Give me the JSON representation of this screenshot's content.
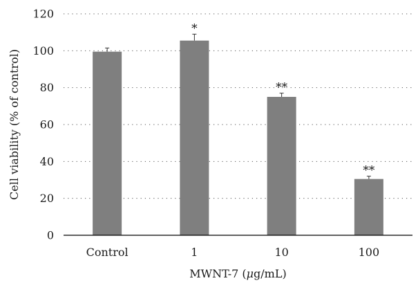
{
  "chart_data": {
    "type": "bar",
    "categories": [
      "Control",
      "1",
      "10",
      "100"
    ],
    "values": [
      99.5,
      105.5,
      75,
      30.5
    ],
    "errors": [
      2,
      3.5,
      2,
      1.5
    ],
    "significance": [
      "",
      "*",
      "**",
      "**"
    ],
    "xlabel_parts": [
      "MWNT-7 (",
      "μ",
      "g/mL)"
    ],
    "ylabel": "Cell viability (% of control)",
    "ylim": [
      0,
      120
    ],
    "yticks": [
      0,
      20,
      40,
      60,
      80,
      100,
      120
    ],
    "grid": true,
    "bar_color": "#7f7f7f"
  }
}
